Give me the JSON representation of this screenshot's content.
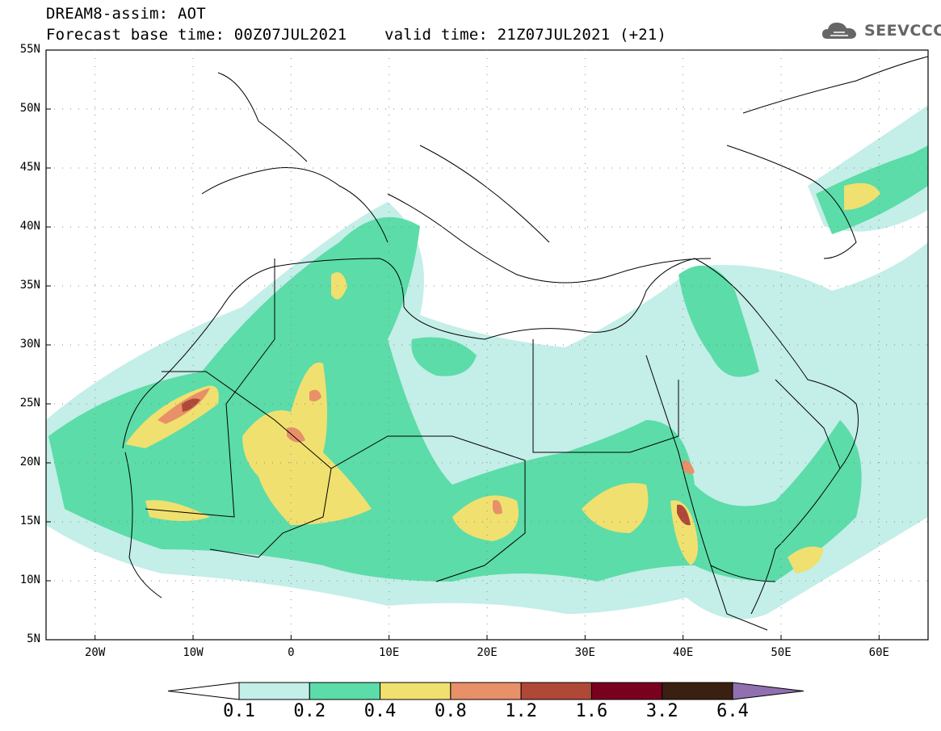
{
  "header": {
    "title_line1": "DREAM8-assim: AOT",
    "title_line2": "Forecast base time: 00Z07JUL2021    valid time: 21Z07JUL2021 (+21)",
    "logo_text": "SEEVCCC",
    "logo_icon": "cloud-icon"
  },
  "axes": {
    "lat_ticks": [
      "55N",
      "50N",
      "45N",
      "40N",
      "35N",
      "30N",
      "25N",
      "20N",
      "15N",
      "10N",
      "5N"
    ],
    "lon_ticks": [
      "20W",
      "10W",
      "0",
      "10E",
      "20E",
      "30E",
      "40E",
      "50E",
      "60E"
    ]
  },
  "colorbar": {
    "levels": [
      "0.1",
      "0.2",
      "0.4",
      "0.8",
      "1.2",
      "1.6",
      "3.2",
      "6.4"
    ],
    "colors": [
      "#ffffff",
      "#c4eee8",
      "#5cdca8",
      "#f0e070",
      "#e89068",
      "#b04838",
      "#7a0020",
      "#3a2010",
      "#9070b0"
    ]
  }
}
